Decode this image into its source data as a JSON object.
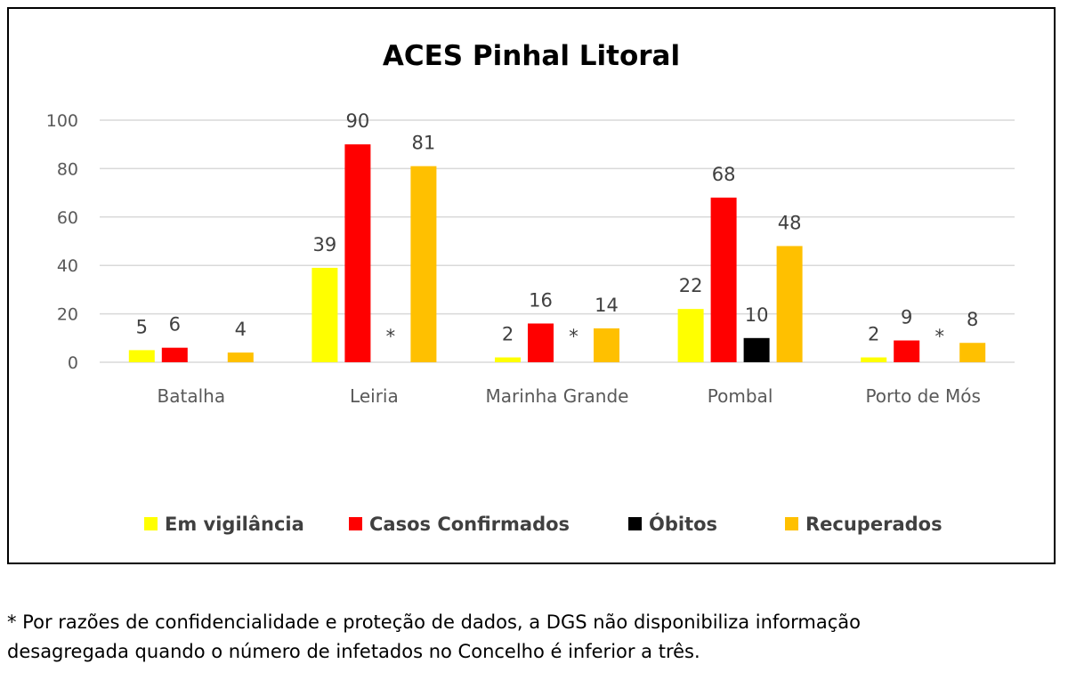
{
  "chart_data": {
    "type": "bar",
    "title": "ACES Pinhal Litoral",
    "categories": [
      "Batalha",
      "Leiria",
      "Marinha Grande",
      "Pombal",
      "Porto de Mós"
    ],
    "series": [
      {
        "name": "Em vigilância",
        "color": "#ffff00",
        "values": [
          5,
          39,
          2,
          22,
          2
        ],
        "labels": [
          "5",
          "39",
          "2",
          "22",
          "2"
        ]
      },
      {
        "name": "Casos Confirmados",
        "color": "#ff0000",
        "values": [
          6,
          90,
          16,
          68,
          9
        ],
        "labels": [
          "6",
          "90",
          "16",
          "68",
          "9"
        ]
      },
      {
        "name": "Óbitos",
        "color": "#000000",
        "values": [
          null,
          null,
          null,
          10,
          null
        ],
        "labels": [
          "",
          "*",
          "*",
          "10",
          "*"
        ]
      },
      {
        "name": "Recuperados",
        "color": "#ffc000",
        "values": [
          4,
          81,
          14,
          48,
          8
        ],
        "labels": [
          "4",
          "81",
          "14",
          "48",
          "8"
        ]
      }
    ],
    "yticks": [
      "0",
      "20",
      "40",
      "60",
      "80",
      "100"
    ],
    "ylim": [
      0,
      100
    ],
    "grid": true,
    "legend_position": "bottom"
  },
  "footnote": {
    "line1": "* Por razões de confidencialidade e proteção de dados, a DGS não disponibiliza informação",
    "line2": "desagregada quando o número de infetados no Concelho é inferior a três."
  }
}
